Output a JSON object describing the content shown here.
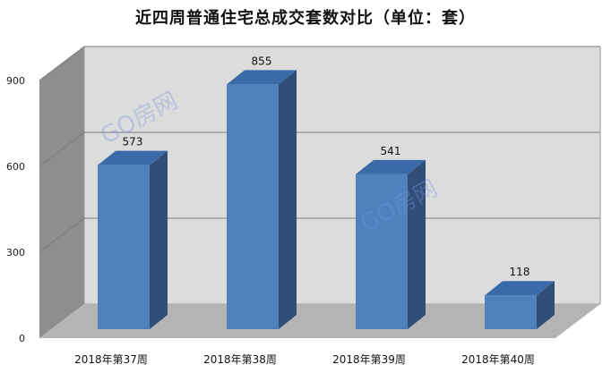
{
  "chart_data": {
    "type": "bar",
    "title": "近四周普通住宅总成交套数对比（单位：套）",
    "categories": [
      "2018年第37周",
      "2018年第38周",
      "2018年第39周",
      "2018年第40周"
    ],
    "values": [
      573,
      855,
      541,
      118
    ],
    "ylim": [
      0,
      900
    ],
    "yticks": [
      0,
      300,
      600,
      900
    ],
    "grid": true,
    "legend": "none",
    "colors": {
      "bar_front": "#4f81bd",
      "bar_side": "#2f4f79",
      "bar_top": "#3a6aa8",
      "wall": "#dcdcdc",
      "side_wall": "#8e8e8e",
      "floor": "#b4b4b4",
      "grid": "#7a7a7a"
    }
  },
  "watermark": {
    "text": "GO房网"
  }
}
